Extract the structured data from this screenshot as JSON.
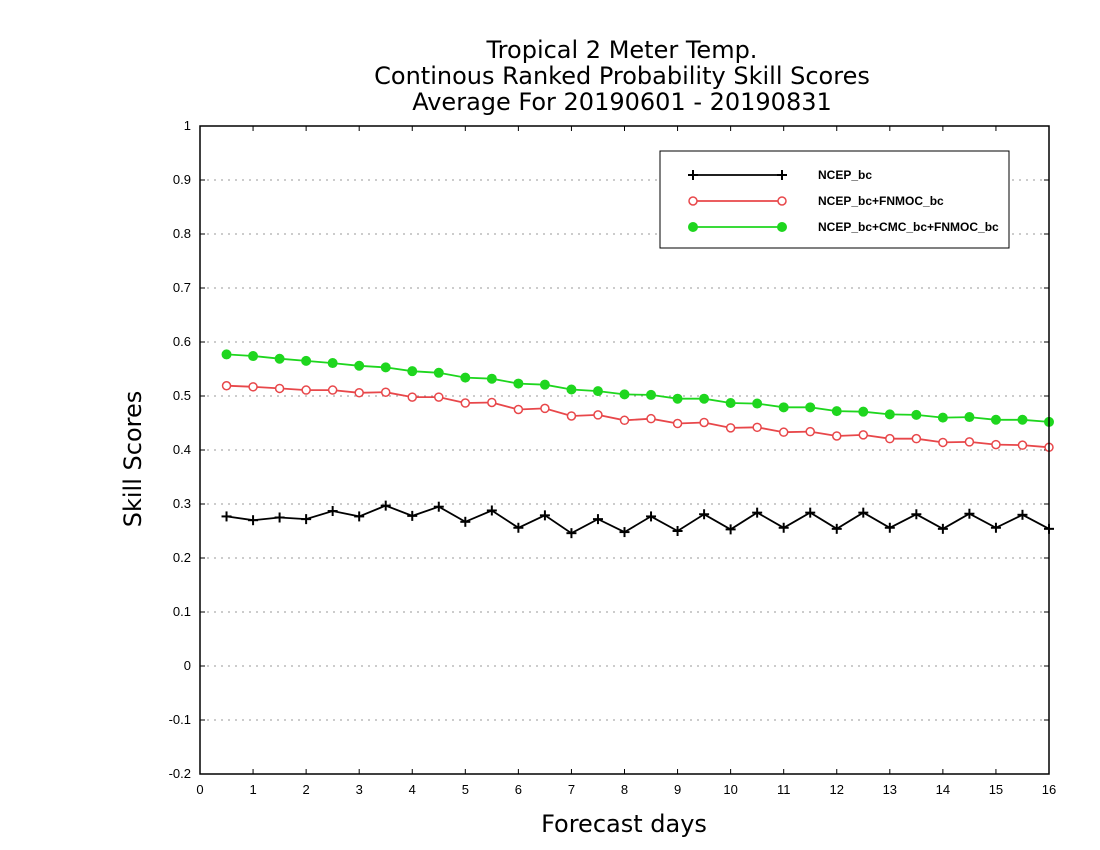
{
  "chart_data": {
    "type": "line",
    "title_lines": [
      "Tropical 2 Meter Temp.",
      "Continous Ranked Probability Skill Scores",
      "Average For 20190601 - 20190831"
    ],
    "xlabel": "Forecast days",
    "ylabel": "Skill Scores",
    "xlim": [
      0,
      16
    ],
    "ylim": [
      -0.2,
      1
    ],
    "x_ticks": [
      "0",
      "1",
      "2",
      "3",
      "4",
      "5",
      "6",
      "7",
      "8",
      "9",
      "10",
      "11",
      "12",
      "13",
      "14",
      "15",
      "16"
    ],
    "y_ticks": [
      "-0.2",
      "-0.1",
      "0",
      "0.1",
      "0.2",
      "0.3",
      "0.4",
      "0.5",
      "0.6",
      "0.7",
      "0.8",
      "0.9",
      "1"
    ],
    "grid": "horizontal dotted",
    "legend_position": "top-right",
    "x": [
      0.5,
      1,
      1.5,
      2,
      2.5,
      3,
      3.5,
      4,
      4.5,
      5,
      5.5,
      6,
      6.5,
      7,
      7.5,
      8,
      8.5,
      9,
      9.5,
      10,
      10.5,
      11,
      11.5,
      12,
      12.5,
      13,
      13.5,
      14,
      14.5,
      15,
      15.5,
      16
    ],
    "series": [
      {
        "name": "NCEP_bc",
        "color": "#000000",
        "marker": "plus",
        "values": [
          0.277,
          0.27,
          0.275,
          0.272,
          0.287,
          0.277,
          0.297,
          0.278,
          0.295,
          0.267,
          0.288,
          0.256,
          0.279,
          0.246,
          0.272,
          0.248,
          0.277,
          0.25,
          0.281,
          0.253,
          0.284,
          0.256,
          0.284,
          0.254,
          0.284,
          0.256,
          0.281,
          0.254,
          0.282,
          0.256,
          0.28,
          0.254
        ]
      },
      {
        "name": "NCEP_bc+FNMOC_bc",
        "color": "#e8474a",
        "marker": "open-circle",
        "values": [
          0.519,
          0.517,
          0.514,
          0.511,
          0.511,
          0.506,
          0.507,
          0.498,
          0.498,
          0.487,
          0.488,
          0.475,
          0.477,
          0.463,
          0.465,
          0.455,
          0.458,
          0.449,
          0.451,
          0.441,
          0.442,
          0.433,
          0.434,
          0.426,
          0.428,
          0.421,
          0.421,
          0.414,
          0.415,
          0.41,
          0.409,
          0.405
        ]
      },
      {
        "name": "NCEP_bc+CMC_bc+FNMOC_bc",
        "color": "#1ed61e",
        "marker": "filled-circle",
        "values": [
          0.577,
          0.574,
          0.569,
          0.565,
          0.561,
          0.556,
          0.553,
          0.546,
          0.543,
          0.534,
          0.532,
          0.523,
          0.521,
          0.512,
          0.509,
          0.503,
          0.502,
          0.495,
          0.495,
          0.487,
          0.486,
          0.479,
          0.479,
          0.472,
          0.471,
          0.466,
          0.465,
          0.46,
          0.461,
          0.456,
          0.456,
          0.452
        ]
      }
    ]
  }
}
